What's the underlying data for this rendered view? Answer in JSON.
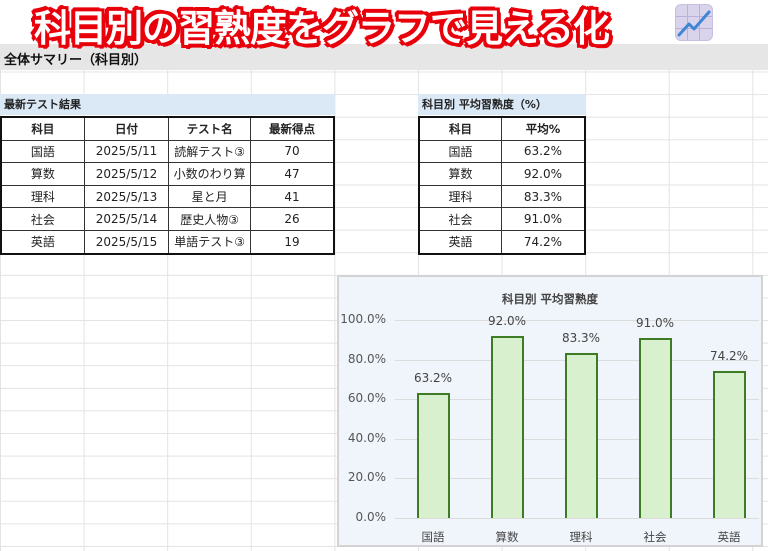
{
  "banner": {
    "title": "科目別の習熟度をグラフで見える化",
    "emoji": "chart-increasing-icon"
  },
  "summary": {
    "title": "全体サマリー（科目別）"
  },
  "latest_tests": {
    "heading": "最新テスト結果",
    "columns": [
      "科目",
      "日付",
      "テスト名",
      "最新得点"
    ],
    "rows": [
      [
        "国語",
        "2025/5/11",
        "読解テスト③",
        "70"
      ],
      [
        "算数",
        "2025/5/12",
        "小数のわり算",
        "47"
      ],
      [
        "理科",
        "2025/5/13",
        "星と月",
        "41"
      ],
      [
        "社会",
        "2025/5/14",
        "歴史人物③",
        "26"
      ],
      [
        "英語",
        "2025/5/15",
        "単語テスト③",
        "19"
      ]
    ]
  },
  "avg_table": {
    "heading": "科目別 平均習熟度（%）",
    "columns": [
      "科目",
      "平均%"
    ],
    "rows": [
      [
        "国語",
        "63.2%"
      ],
      [
        "算数",
        "92.0%"
      ],
      [
        "理科",
        "83.3%"
      ],
      [
        "社会",
        "91.0%"
      ],
      [
        "英語",
        "74.2%"
      ]
    ]
  },
  "chart_data": {
    "type": "bar",
    "title": "科目別 平均習熟度",
    "categories": [
      "国語",
      "算数",
      "理科",
      "社会",
      "英語"
    ],
    "values": [
      63.2,
      92.0,
      83.3,
      91.0,
      74.2
    ],
    "value_labels": [
      "63.2%",
      "92.0%",
      "83.3%",
      "91.0%",
      "74.2%"
    ],
    "xlabel": "",
    "ylabel": "",
    "ylim": [
      0,
      100
    ],
    "yticks": [
      "0.0%",
      "20.0%",
      "40.0%",
      "60.0%",
      "80.0%",
      "100.0%"
    ],
    "grid": true,
    "legend": "none",
    "colors": {
      "bar_fill": "#d8f0cd",
      "bar_border": "#3e7b25",
      "plot_bg": "#f0f5fb"
    }
  }
}
